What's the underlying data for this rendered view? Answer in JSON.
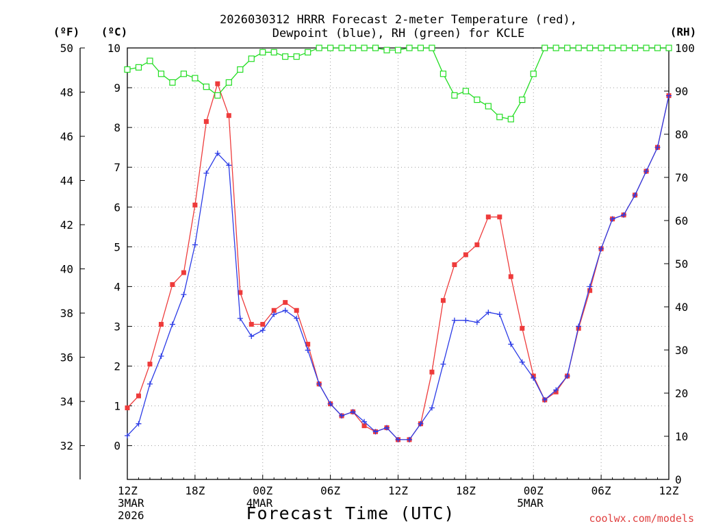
{
  "chart_data": {
    "type": "line",
    "title_line1": "2026030312 HRRR Forecast 2-meter Temperature (red),",
    "title_line2": "Dewpoint (blue), RH (green) for KCLE",
    "xlabel": "Forecast Time (UTC)",
    "credit": "coolwx.com/models",
    "left_unit_f": "(ºF)",
    "left_unit_c": "(ºC)",
    "right_unit": "(RH)",
    "yaxis_f_ticks": [
      "50",
      "48",
      "46",
      "44",
      "42",
      "40",
      "38",
      "36",
      "34",
      "32"
    ],
    "yaxis_f_values": [
      50,
      48,
      46,
      44,
      42,
      40,
      38,
      36,
      34,
      32
    ],
    "yaxis_c_ticks": [
      "10",
      "9",
      "8",
      "7",
      "6",
      "5",
      "4",
      "3",
      "2",
      "1",
      "0"
    ],
    "yaxis_c_values": [
      10,
      9,
      8,
      7,
      6,
      5,
      4,
      3,
      2,
      1,
      0
    ],
    "yaxis_rh_ticks": [
      "100",
      "90",
      "80",
      "70",
      "60",
      "50",
      "40",
      "30",
      "20",
      "10",
      "0"
    ],
    "yaxis_rh_values": [
      100,
      90,
      80,
      70,
      60,
      50,
      40,
      30,
      20,
      10,
      0
    ],
    "ylim_c": [
      -0.85,
      10
    ],
    "ylim_rh": [
      0,
      100
    ],
    "forecast_hours": [
      0,
      1,
      2,
      3,
      4,
      5,
      6,
      7,
      8,
      9,
      10,
      11,
      12,
      13,
      14,
      15,
      16,
      17,
      18,
      19,
      20,
      21,
      22,
      23,
      24,
      25,
      26,
      27,
      28,
      29,
      30,
      31,
      32,
      33,
      34,
      35,
      36,
      37,
      38,
      39,
      40,
      41,
      42,
      43,
      44,
      45,
      46,
      47,
      48
    ],
    "x_ticks": [
      {
        "hour": 0,
        "line1": "12Z",
        "line2": "3MAR",
        "line3": "2026"
      },
      {
        "hour": 6,
        "line1": "18Z",
        "line2": "",
        "line3": ""
      },
      {
        "hour": 12,
        "line1": "00Z",
        "line2": "4MAR",
        "line3": ""
      },
      {
        "hour": 18,
        "line1": "06Z",
        "line2": "",
        "line3": ""
      },
      {
        "hour": 24,
        "line1": "12Z",
        "line2": "",
        "line3": ""
      },
      {
        "hour": 30,
        "line1": "18Z",
        "line2": "",
        "line3": ""
      },
      {
        "hour": 36,
        "line1": "00Z",
        "line2": "5MAR",
        "line3": ""
      },
      {
        "hour": 42,
        "line1": "06Z",
        "line2": "",
        "line3": ""
      },
      {
        "hour": 48,
        "line1": "12Z",
        "line2": "",
        "line3": ""
      }
    ],
    "series": [
      {
        "name": "Temperature",
        "units": "C",
        "color": "#ee3b3b",
        "marker": "square",
        "values": [
          0.95,
          1.25,
          2.05,
          3.05,
          4.05,
          4.35,
          6.05,
          8.15,
          9.1,
          8.3,
          3.85,
          3.05,
          3.05,
          3.4,
          3.6,
          3.4,
          2.55,
          1.55,
          1.05,
          0.75,
          0.85,
          0.5,
          0.35,
          0.45,
          0.15,
          0.15,
          0.55,
          1.85,
          3.65,
          4.55,
          4.8,
          5.05,
          5.75,
          5.75,
          4.25,
          2.95,
          1.75,
          1.15,
          1.35,
          1.75,
          2.95,
          3.9,
          4.95,
          5.7,
          5.8,
          6.3,
          6.9,
          7.5,
          8.8
        ]
      },
      {
        "name": "Dewpoint",
        "units": "C",
        "color": "#2b3be6",
        "marker": "plus",
        "values": [
          0.25,
          0.55,
          1.55,
          2.25,
          3.05,
          3.8,
          5.05,
          6.85,
          7.35,
          7.05,
          3.2,
          2.75,
          2.9,
          3.3,
          3.4,
          3.2,
          2.4,
          1.55,
          1.05,
          0.75,
          0.85,
          0.6,
          0.35,
          0.45,
          0.15,
          0.15,
          0.55,
          0.95,
          2.05,
          3.15,
          3.15,
          3.1,
          3.35,
          3.3,
          2.55,
          2.1,
          1.7,
          1.15,
          1.4,
          1.75,
          3.0,
          4.0,
          4.95,
          5.7,
          5.8,
          6.3,
          6.9,
          7.5,
          8.8
        ]
      },
      {
        "name": "RH",
        "units": "%",
        "color": "#22dd22",
        "marker": "open-square",
        "values": [
          95,
          95.5,
          97,
          94,
          92,
          94,
          93,
          91,
          89,
          92,
          95,
          97.5,
          99,
          99,
          98,
          98,
          99,
          100,
          100,
          100,
          100,
          100,
          100,
          99.5,
          99.5,
          100,
          100,
          100,
          94,
          89,
          90,
          88,
          86.5,
          84,
          83.5,
          88,
          94,
          100,
          100,
          100,
          100,
          100,
          100,
          100,
          100,
          100,
          100,
          100,
          100
        ]
      }
    ]
  }
}
